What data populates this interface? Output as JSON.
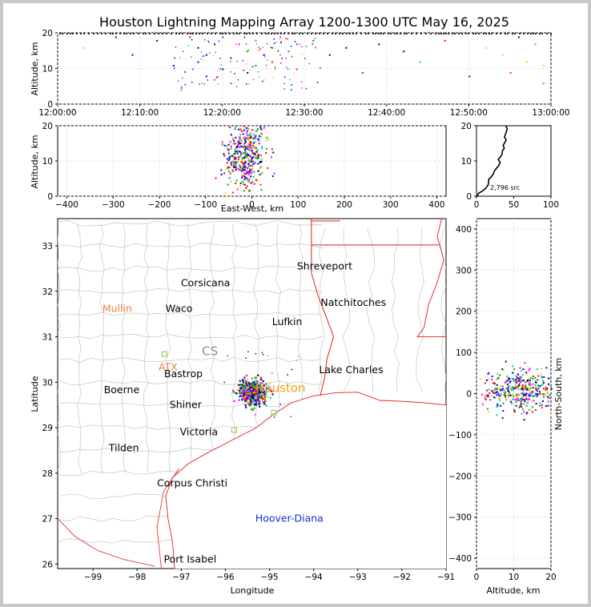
{
  "chart_data": {
    "title": "Houston Lightning Mapping Array 1200-1300 UTC May 16, 2025",
    "time_height": {
      "type": "scatter",
      "ylabel": "Altitude, km",
      "ylim": [
        0,
        20
      ],
      "yticks": [
        "0",
        "10",
        "20"
      ],
      "xticks": [
        "12:00:00",
        "12:10:00",
        "12:20:00",
        "12:30:00",
        "12:40:00",
        "12:50:00",
        "13:00:00"
      ],
      "xlim_minutes": [
        0,
        60
      ],
      "sample_points_min_km": [
        [
          3,
          16
        ],
        [
          7,
          19
        ],
        [
          9,
          14
        ],
        [
          12,
          18
        ],
        [
          14,
          11
        ],
        [
          16,
          19
        ],
        [
          17,
          16
        ],
        [
          17,
          12
        ],
        [
          18,
          8
        ],
        [
          18,
          14
        ],
        [
          19,
          17
        ],
        [
          20,
          10
        ],
        [
          20,
          19
        ],
        [
          21,
          6
        ],
        [
          21,
          13
        ],
        [
          22,
          17
        ],
        [
          23,
          9
        ],
        [
          23,
          15
        ],
        [
          24,
          18
        ],
        [
          24,
          11
        ],
        [
          25,
          14
        ],
        [
          25,
          7
        ],
        [
          26,
          16
        ],
        [
          26,
          12
        ],
        [
          27,
          19
        ],
        [
          28,
          15
        ],
        [
          29,
          10
        ],
        [
          29,
          17
        ],
        [
          30,
          13
        ],
        [
          31,
          18
        ],
        [
          33,
          14
        ],
        [
          35,
          16
        ],
        [
          37,
          9
        ],
        [
          39,
          17
        ],
        [
          42,
          15
        ],
        [
          44,
          12
        ],
        [
          47,
          18
        ],
        [
          50,
          8
        ],
        [
          52,
          16
        ],
        [
          54,
          14
        ],
        [
          55,
          9
        ],
        [
          56,
          19
        ],
        [
          57,
          12
        ],
        [
          58,
          17
        ],
        [
          59,
          11
        ],
        [
          59,
          6
        ]
      ]
    },
    "ew_height": {
      "type": "scatter",
      "xlabel": "East-West, km",
      "ylabel": "Altitude, km",
      "xlim": [
        -420,
        420
      ],
      "ylim": [
        0,
        20
      ],
      "xticks": [
        "−400",
        "−300",
        "−200",
        "−100",
        "0",
        "100",
        "200",
        "300",
        "400"
      ],
      "yticks": [
        "0",
        "10",
        "20"
      ],
      "center_km": [
        -15,
        12
      ],
      "spread_km": [
        22,
        5
      ]
    },
    "altitude_histogram": {
      "type": "line",
      "xlim": [
        0,
        100
      ],
      "ylim": [
        0,
        20
      ],
      "xticks": [
        "0",
        "50",
        "100"
      ],
      "yticks": [
        "0",
        "10",
        "20"
      ],
      "annotation": "2,796 src",
      "counts": [
        [
          2,
          0
        ],
        [
          4,
          0.8
        ],
        [
          8,
          1.5
        ],
        [
          12,
          2.2
        ],
        [
          15,
          3.2
        ],
        [
          18,
          4
        ],
        [
          16,
          4.8
        ],
        [
          20,
          5.5
        ],
        [
          22,
          6.4
        ],
        [
          24,
          7.2
        ],
        [
          28,
          8
        ],
        [
          30,
          8.8
        ],
        [
          32,
          9.6
        ],
        [
          31,
          10.4
        ],
        [
          33,
          11.2
        ],
        [
          35,
          12
        ],
        [
          34,
          12.8
        ],
        [
          37,
          13.6
        ],
        [
          36,
          14.4
        ],
        [
          38,
          15.2
        ],
        [
          40,
          16
        ],
        [
          38,
          16.8
        ],
        [
          41,
          17.6
        ],
        [
          40,
          18.4
        ],
        [
          42,
          19.2
        ],
        [
          39,
          20
        ]
      ]
    },
    "plan_view": {
      "type": "scatter",
      "xlabel": "Longitude",
      "ylabel": "Latitude",
      "xlim": [
        -99.8,
        -91
      ],
      "ylim": [
        25.9,
        33.6
      ],
      "xticks": [
        "−99",
        "−98",
        "−97",
        "−96",
        "−95",
        "−94",
        "−93",
        "−92",
        "−91"
      ],
      "yticks": [
        "26",
        "27",
        "28",
        "29",
        "30",
        "31",
        "32",
        "33"
      ],
      "storm_center": [
        -95.4,
        29.8
      ],
      "cities": [
        {
          "name": "Shreveport",
          "lon": -93.75,
          "lat": 32.55,
          "color": "#000000"
        },
        {
          "name": "Corsicana",
          "lon": -96.45,
          "lat": 32.18,
          "color": "#000000"
        },
        {
          "name": "Mullin",
          "lon": -98.45,
          "lat": 31.62,
          "color": "#f08040"
        },
        {
          "name": "Waco",
          "lon": -97.05,
          "lat": 31.62,
          "color": "#000000"
        },
        {
          "name": "Natchitoches",
          "lon": -93.1,
          "lat": 31.75,
          "color": "#000000"
        },
        {
          "name": "Lufkin",
          "lon": -94.6,
          "lat": 31.33,
          "color": "#000000"
        },
        {
          "name": "ATX",
          "lon": -97.3,
          "lat": 30.33,
          "color": "#f08040"
        },
        {
          "name": "Bastrop",
          "lon": -96.95,
          "lat": 30.18,
          "color": "#000000"
        },
        {
          "name": "Lake Charles",
          "lon": -93.15,
          "lat": 30.27,
          "color": "#000000"
        },
        {
          "name": "Boerne",
          "lon": -98.35,
          "lat": 29.83,
          "color": "#000000"
        },
        {
          "name": "Houston",
          "lon": -94.75,
          "lat": 29.86,
          "color": "#f0a020"
        },
        {
          "name": "Shiner",
          "lon": -96.9,
          "lat": 29.5,
          "color": "#000000"
        },
        {
          "name": "Victoria",
          "lon": -96.6,
          "lat": 28.9,
          "color": "#000000"
        },
        {
          "name": "Tilden",
          "lon": -98.3,
          "lat": 28.55,
          "color": "#000000"
        },
        {
          "name": "Corpus Christi",
          "lon": -96.75,
          "lat": 27.78,
          "color": "#000000"
        },
        {
          "name": "Hoover-Diana",
          "lon": -94.55,
          "lat": 27.0,
          "color": "#1030d0"
        },
        {
          "name": "Port Isabel",
          "lon": -96.8,
          "lat": 26.1,
          "color": "#000000"
        }
      ],
      "stations": [
        {
          "lon": -97.38,
          "lat": 30.62,
          "color": "#88cc44"
        },
        {
          "lon": -95.8,
          "lat": 28.95,
          "color": "#88cc44"
        },
        {
          "lon": -94.9,
          "lat": 29.33,
          "color": "#88cc44"
        }
      ],
      "college_station_label": "CS"
    },
    "ns_height": {
      "type": "scatter",
      "xlabel": "Altitude, km",
      "ylabel": "North-South, km",
      "xlim": [
        0,
        20
      ],
      "ylim": [
        -425,
        425
      ],
      "xticks": [
        "0",
        "10",
        "20"
      ],
      "yticks": [
        "−400",
        "−300",
        "−200",
        "−100",
        "0",
        "100",
        "200",
        "300",
        "400"
      ],
      "center_km": [
        12,
        10
      ],
      "spread_km": [
        5,
        28
      ]
    },
    "colors": {
      "source_palette": [
        "#0000ff",
        "#00cccc",
        "#00aa00",
        "#ffcc00",
        "#ff0000",
        "#ff00ff",
        "#000080"
      ],
      "state_border": "#e02020",
      "county_border": "#bbbbbb",
      "grid": "#dddddd"
    }
  }
}
